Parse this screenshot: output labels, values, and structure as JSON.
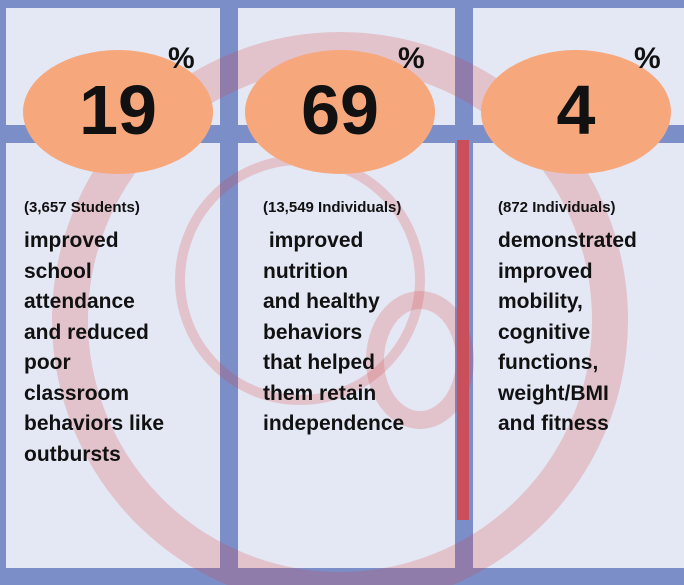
{
  "panels": [
    {
      "number": "19",
      "percent": "%",
      "count": "(3,657 Students)",
      "lines": [
        "improved",
        "school",
        "attendance",
        "and reduced",
        "poor",
        "classroom",
        "behaviors like",
        "outbursts"
      ]
    },
    {
      "number": "69",
      "percent": "%",
      "count": "(13,549 Individuals)",
      "lines": [
        " improved",
        "nutrition",
        "and healthy",
        "behaviors",
        "that helped",
        "them retain",
        "independence"
      ]
    },
    {
      "number": "4",
      "percent": "%",
      "count": "(872 Individuals)",
      "lines": [
        "demonstrated",
        "improved",
        "mobility,",
        "cognitive",
        "functions,",
        "weight/BMI",
        "and fitness"
      ]
    }
  ]
}
